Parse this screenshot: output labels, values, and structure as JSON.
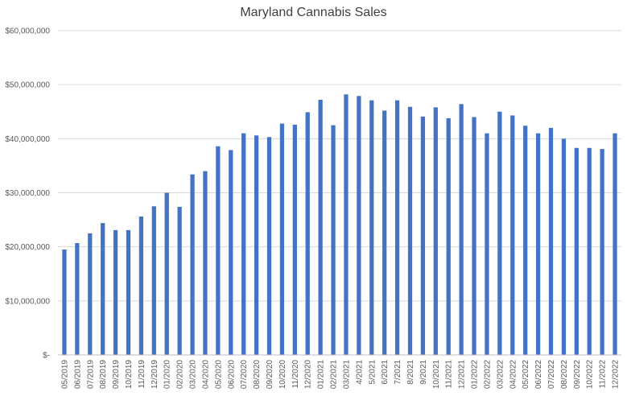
{
  "chart_data": {
    "type": "bar",
    "title": "Maryland Cannabis Sales",
    "xlabel": "",
    "ylabel": "",
    "ylim": [
      0,
      60000000
    ],
    "yticks": [
      0,
      10000000,
      20000000,
      30000000,
      40000000,
      50000000,
      60000000
    ],
    "ytick_labels": [
      "$-",
      "$10,000,000",
      "$20,000,000",
      "$30,000,000",
      "$40,000,000",
      "$50,000,000",
      "$60,000,000"
    ],
    "grid": true,
    "legend": "none",
    "bar_color": "#4472c4",
    "categories": [
      "05/2019",
      "06/2019",
      "07/2019",
      "08/2019",
      "09/2019",
      "10/2019",
      "11/2019",
      "12/2019",
      "01/2020",
      "02/2020",
      "03/2020",
      "04/2020",
      "05/2020",
      "06/2020",
      "07/2020",
      "08/2020",
      "09/2020",
      "10/2020",
      "11/2020",
      "12/2020",
      "01/2021",
      "02/2021",
      "03/2021",
      "4/2021",
      "5/2021",
      "6/2021",
      "7/2021",
      "8/2021",
      "9/2021",
      "10/2021",
      "11/2021",
      "12/2021",
      "01/2022",
      "02/2022",
      "03/2022",
      "04/2022",
      "05/2022",
      "06/2022",
      "07/2022",
      "08/2022",
      "09/2022",
      "10/2022",
      "11/2022",
      "12/2022"
    ],
    "values": [
      19500000,
      20700000,
      22500000,
      24400000,
      23100000,
      23100000,
      25600000,
      27500000,
      30000000,
      27400000,
      33400000,
      34000000,
      38600000,
      37900000,
      41000000,
      40600000,
      40300000,
      42800000,
      42600000,
      44900000,
      47200000,
      42500000,
      48200000,
      47900000,
      47100000,
      45200000,
      47100000,
      45900000,
      44100000,
      45800000,
      43800000,
      46400000,
      44000000,
      41000000,
      45000000,
      44300000,
      42400000,
      41000000,
      42000000,
      40000000,
      38300000,
      38300000,
      38100000,
      41000000
    ]
  }
}
